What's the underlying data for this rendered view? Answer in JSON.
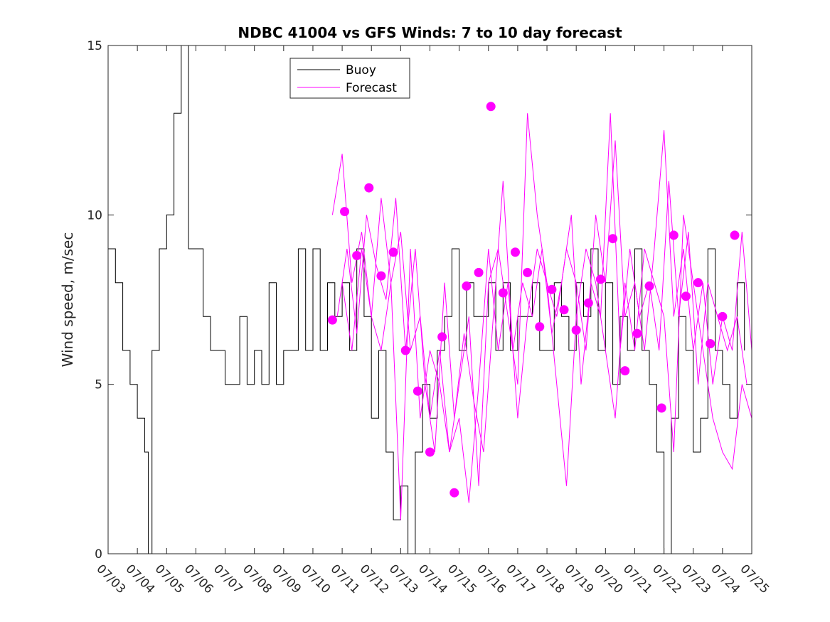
{
  "chart_data": {
    "type": "line",
    "title": "NDBC 41004 vs GFS Winds: 7 to 10 day forecast",
    "xlabel": "",
    "ylabel": "Wind speed, m/sec",
    "xlim": [
      "07/03",
      "07/25"
    ],
    "ylim": [
      0,
      15
    ],
    "x_ticks": [
      "07/03",
      "07/04",
      "07/05",
      "07/06",
      "07/07",
      "07/08",
      "07/09",
      "07/10",
      "07/11",
      "07/12",
      "07/13",
      "07/14",
      "07/15",
      "07/16",
      "07/17",
      "07/18",
      "07/19",
      "07/20",
      "07/21",
      "07/22",
      "07/23",
      "07/24",
      "07/25"
    ],
    "y_ticks": [
      0,
      5,
      10,
      15
    ],
    "grid": false,
    "legend": {
      "placement": "top",
      "entries": [
        "Buoy",
        "Forecast"
      ]
    },
    "colors": {
      "buoy": "#000000",
      "forecast": "#ff00ff"
    },
    "series": [
      {
        "name": "Buoy",
        "style": "line",
        "x": [
          "07/03 00:00",
          "07/03 06:00",
          "07/03 12:00",
          "07/03 18:00",
          "07/04 00:00",
          "07/04 06:00",
          "07/04 09:00",
          "07/04 12:00",
          "07/04 18:00",
          "07/05 00:00",
          "07/05 06:00",
          "07/05 12:00",
          "07/05 18:00",
          "07/06 00:00",
          "07/06 06:00",
          "07/06 12:00",
          "07/06 18:00",
          "07/07 00:00",
          "07/07 06:00",
          "07/07 12:00",
          "07/07 18:00",
          "07/08 00:00",
          "07/08 06:00",
          "07/08 12:00",
          "07/08 18:00",
          "07/09 00:00",
          "07/09 06:00",
          "07/09 12:00",
          "07/09 18:00",
          "07/10 00:00",
          "07/10 06:00",
          "07/10 12:00",
          "07/10 18:00",
          "07/11 00:00",
          "07/11 06:00",
          "07/11 12:00",
          "07/11 18:00",
          "07/12 00:00",
          "07/12 06:00",
          "07/12 12:00",
          "07/12 18:00",
          "07/13 00:00",
          "07/13 06:00",
          "07/13 12:00",
          "07/13 18:00",
          "07/14 00:00",
          "07/14 06:00",
          "07/14 12:00",
          "07/14 18:00",
          "07/15 00:00",
          "07/15 06:00",
          "07/15 12:00",
          "07/15 18:00",
          "07/16 00:00",
          "07/16 06:00",
          "07/16 12:00",
          "07/16 18:00",
          "07/17 00:00",
          "07/17 06:00",
          "07/17 12:00",
          "07/17 18:00",
          "07/18 00:00",
          "07/18 06:00",
          "07/18 12:00",
          "07/18 18:00",
          "07/19 00:00",
          "07/19 06:00",
          "07/19 12:00",
          "07/19 18:00",
          "07/20 00:00",
          "07/20 06:00",
          "07/20 12:00",
          "07/20 18:00",
          "07/21 00:00",
          "07/21 06:00",
          "07/21 12:00",
          "07/21 18:00",
          "07/22 00:00",
          "07/22 06:00",
          "07/22 12:00",
          "07/22 18:00",
          "07/23 00:00",
          "07/23 06:00",
          "07/23 12:00",
          "07/23 18:00",
          "07/24 00:00",
          "07/24 06:00",
          "07/24 12:00",
          "07/24 18:00"
        ],
        "values": [
          9,
          8,
          6,
          5,
          4,
          3,
          0,
          6,
          9,
          10,
          13,
          15,
          9,
          9,
          7,
          6,
          6,
          5,
          5,
          7,
          5,
          6,
          5,
          8,
          5,
          6,
          6,
          9,
          6,
          9,
          6,
          8,
          7,
          8,
          6,
          9,
          7,
          4,
          6,
          3,
          1,
          2,
          0,
          3,
          5,
          4,
          6,
          7,
          9,
          6,
          8,
          7,
          7,
          8,
          6,
          8,
          6,
          7,
          7,
          8,
          6,
          6,
          8,
          7,
          6,
          8,
          7,
          9,
          6,
          8,
          5,
          7,
          6,
          9,
          6,
          5,
          3,
          0,
          4,
          7,
          6,
          3,
          4,
          9,
          6,
          5,
          4,
          8,
          6
        ]
      },
      {
        "name": "Forecast",
        "style": "line",
        "x": [
          "07/10 16:00",
          "07/11 00:00",
          "07/11 08:00",
          "07/11 16:00",
          "07/12 00:00",
          "07/12 08:00",
          "07/12 16:00",
          "07/13 00:00",
          "07/13 08:00",
          "07/13 16:00",
          "07/14 00:00",
          "07/14 08:00",
          "07/14 16:00",
          "07/15 00:00",
          "07/15 08:00",
          "07/15 16:00",
          "07/16 00:00",
          "07/16 08:00",
          "07/16 16:00",
          "07/17 00:00",
          "07/17 08:00",
          "07/17 16:00",
          "07/18 00:00",
          "07/18 08:00",
          "07/18 16:00",
          "07/19 00:00",
          "07/19 08:00",
          "07/19 16:00",
          "07/20 00:00",
          "07/20 08:00",
          "07/20 16:00",
          "07/21 00:00",
          "07/21 08:00",
          "07/21 16:00",
          "07/22 00:00",
          "07/22 08:00",
          "07/22 16:00",
          "07/23 00:00",
          "07/23 08:00",
          "07/23 16:00",
          "07/24 00:00",
          "07/24 08:00",
          "07/24 16:00",
          "07/25 00:00"
        ],
        "values": [
          10,
          11.8,
          8,
          9.5,
          7,
          10.5,
          8,
          9.5,
          6,
          7,
          4,
          6,
          3,
          5,
          7,
          2,
          8,
          9,
          7,
          5,
          13,
          10,
          8,
          7,
          9,
          8,
          6,
          10,
          8,
          12.2,
          7,
          8,
          6,
          9,
          12.5,
          7,
          9,
          6,
          8,
          5,
          7,
          6,
          9.5,
          6
        ]
      },
      {
        "name": "Forecast",
        "style": "line",
        "x": [
          "07/10 20:00",
          "07/11 04:00",
          "07/11 12:00",
          "07/11 20:00",
          "07/12 04:00",
          "07/12 12:00",
          "07/12 20:00",
          "07/13 04:00",
          "07/13 12:00",
          "07/13 20:00",
          "07/14 04:00",
          "07/14 12:00",
          "07/14 20:00",
          "07/15 04:00",
          "07/15 12:00",
          "07/15 20:00",
          "07/16 04:00",
          "07/16 12:00",
          "07/16 20:00",
          "07/17 04:00",
          "07/17 12:00",
          "07/17 20:00",
          "07/18 04:00",
          "07/18 12:00",
          "07/18 20:00",
          "07/19 04:00",
          "07/19 12:00",
          "07/19 20:00",
          "07/20 04:00",
          "07/20 12:00",
          "07/20 20:00",
          "07/21 04:00",
          "07/21 12:00",
          "07/21 20:00",
          "07/22 04:00",
          "07/22 12:00",
          "07/22 20:00",
          "07/23 04:00",
          "07/23 12:00",
          "07/23 20:00",
          "07/24 04:00",
          "07/24 12:00",
          "07/24 20:00"
        ],
        "values": [
          7,
          9,
          6.5,
          10,
          8.5,
          7.5,
          10.5,
          6,
          9,
          5,
          3,
          8,
          4,
          6.5,
          4.5,
          3,
          7,
          11,
          6,
          8,
          7,
          9,
          6.5,
          8,
          10,
          5,
          8,
          7,
          13,
          6,
          9,
          7,
          8,
          6,
          11,
          7,
          9.5,
          5,
          8,
          7,
          6,
          7,
          5
        ]
      },
      {
        "name": "Forecast",
        "style": "line",
        "x": [
          "07/11 00:00",
          "07/11 08:00",
          "07/11 16:00",
          "07/12 00:00",
          "07/12 08:00",
          "07/12 16:00",
          "07/13 00:00",
          "07/13 08:00",
          "07/13 16:00",
          "07/14 00:00",
          "07/14 08:00",
          "07/14 16:00",
          "07/15 00:00",
          "07/15 08:00",
          "07/15 16:00",
          "07/16 00:00",
          "07/16 08:00",
          "07/16 16:00",
          "07/17 00:00",
          "07/17 08:00",
          "07/17 16:00",
          "07/18 00:00",
          "07/18 08:00",
          "07/18 16:00",
          "07/19 00:00",
          "07/19 08:00",
          "07/19 16:00",
          "07/20 00:00",
          "07/20 08:00",
          "07/20 16:00",
          "07/21 00:00",
          "07/21 08:00",
          "07/21 16:00",
          "07/22 00:00",
          "07/22 08:00",
          "07/22 16:00",
          "07/23 00:00",
          "07/23 08:00",
          "07/23 16:00",
          "07/24 00:00",
          "07/24 08:00",
          "07/24 16:00",
          "07/25 00:00"
        ],
        "values": [
          8,
          6,
          9,
          7,
          6,
          8,
          1,
          9,
          4,
          6,
          5,
          3,
          4,
          1.5,
          5,
          9,
          6,
          8,
          4,
          7,
          9,
          8,
          5,
          2,
          7,
          9,
          8,
          6,
          4,
          8,
          6,
          9,
          8,
          7,
          3,
          10,
          8,
          6,
          4,
          3,
          2.5,
          5,
          4
        ]
      },
      {
        "name": "Forecast",
        "style": "markers",
        "x": [
          "07/10 16:00",
          "07/11 02:00",
          "07/11 12:00",
          "07/11 22:00",
          "07/12 08:00",
          "07/12 18:00",
          "07/13 04:00",
          "07/13 14:00",
          "07/14 00:00",
          "07/14 10:00",
          "07/14 20:00",
          "07/15 06:00",
          "07/15 16:00",
          "07/16 02:00",
          "07/16 12:00",
          "07/16 22:00",
          "07/17 08:00",
          "07/17 18:00",
          "07/18 04:00",
          "07/18 14:00",
          "07/19 00:00",
          "07/19 10:00",
          "07/19 20:00",
          "07/20 06:00",
          "07/20 16:00",
          "07/21 02:00",
          "07/21 12:00",
          "07/21 22:00",
          "07/22 08:00",
          "07/22 18:00",
          "07/23 04:00",
          "07/23 14:00",
          "07/24 00:00",
          "07/24 10:00"
        ],
        "values": [
          6.9,
          10.1,
          8.8,
          10.8,
          8.2,
          8.9,
          6.0,
          4.8,
          3.0,
          6.4,
          1.8,
          7.9,
          8.3,
          13.2,
          7.7,
          8.9,
          8.3,
          6.7,
          7.8,
          7.2,
          6.6,
          7.4,
          8.1,
          9.3,
          5.4,
          6.5,
          7.9,
          4.3,
          9.4,
          7.6,
          8.0,
          6.2,
          7.0,
          9.4
        ]
      }
    ]
  }
}
